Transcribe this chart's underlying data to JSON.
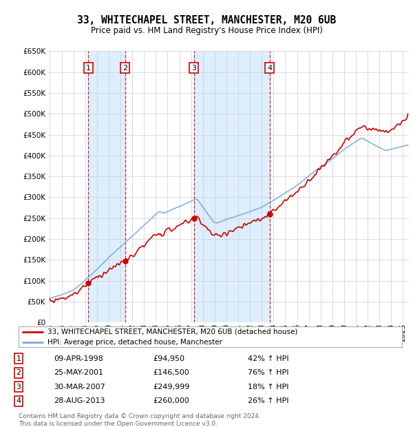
{
  "title": "33, WHITECHAPEL STREET, MANCHESTER, M20 6UB",
  "subtitle": "Price paid vs. HM Land Registry's House Price Index (HPI)",
  "transactions": [
    {
      "num": 1,
      "date": "09-APR-1998",
      "price": 94950,
      "year": 1998.27,
      "price_str": "£94,950",
      "pct": "42% ↑ HPI"
    },
    {
      "num": 2,
      "date": "25-MAY-2001",
      "price": 146500,
      "year": 2001.39,
      "price_str": "£146,500",
      "pct": "76% ↑ HPI"
    },
    {
      "num": 3,
      "date": "30-MAR-2007",
      "price": 249999,
      "year": 2007.24,
      "price_str": "£249,999",
      "pct": "18% ↑ HPI"
    },
    {
      "num": 4,
      "date": "28-AUG-2013",
      "price": 260000,
      "year": 2013.66,
      "price_str": "£260,000",
      "pct": "26% ↑ HPI"
    }
  ],
  "legend_labels": [
    "33, WHITECHAPEL STREET, MANCHESTER, M20 6UB (detached house)",
    "HPI: Average price, detached house, Manchester"
  ],
  "footer": "Contains HM Land Registry data © Crown copyright and database right 2024.\nThis data is licensed under the Open Government Licence v3.0.",
  "price_line_color": "#cc0000",
  "hpi_line_color": "#7aaadd",
  "shade_color": "#ddeeff",
  "grid_color": "#cccccc",
  "marker_box_color": "#cc0000",
  "ylim": [
    0,
    650000
  ],
  "yticks": [
    0,
    50000,
    100000,
    150000,
    200000,
    250000,
    300000,
    350000,
    400000,
    450000,
    500000,
    550000,
    600000,
    650000
  ],
  "xmin": 1994.8,
  "xmax": 2025.5
}
